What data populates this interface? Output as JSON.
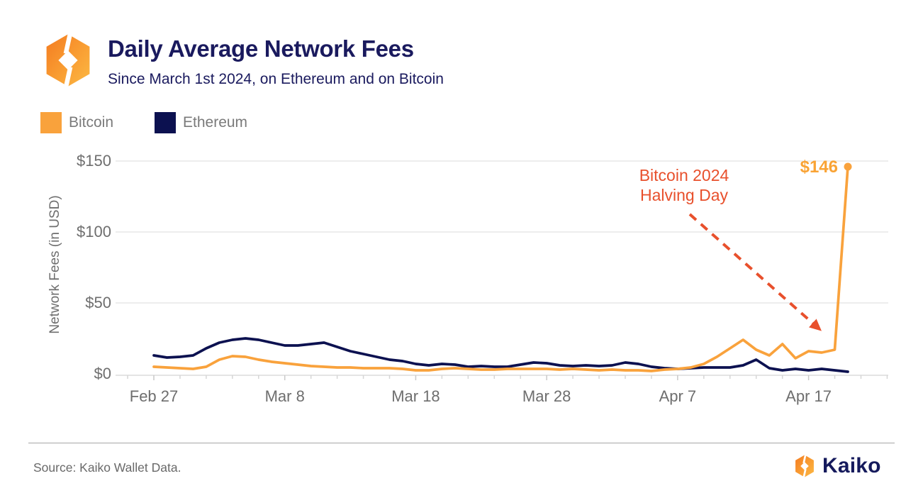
{
  "header": {
    "title": "Daily Average Network Fees",
    "subtitle": "Since March 1st 2024, on Ethereum and on Bitcoin"
  },
  "legend": [
    {
      "label": "Bitcoin",
      "color": "#f9a23c"
    },
    {
      "label": "Ethereum",
      "color": "#0c1150"
    }
  ],
  "chart_data": {
    "type": "line",
    "title": "Daily Average Network Fees",
    "subtitle": "Since March 1st 2024, on Ethereum and on Bitcoin",
    "ylabel": "Network Fees (in USD)",
    "ylim": [
      0,
      150
    ],
    "grid": "horizontal-only",
    "y_ticks": [
      {
        "label": "$0",
        "value": 0
      },
      {
        "label": "$50",
        "value": 50
      },
      {
        "label": "$100",
        "value": 100
      },
      {
        "label": "$150",
        "value": 150
      }
    ],
    "x_ticks": [
      {
        "label": "Feb 27",
        "day": 0
      },
      {
        "label": "Mar 8",
        "day": 10
      },
      {
        "label": "Mar 18",
        "day": 20
      },
      {
        "label": "Mar 28",
        "day": 30
      },
      {
        "label": "Apr 7",
        "day": 40
      },
      {
        "label": "Apr 17",
        "day": 50
      }
    ],
    "x": [
      "Feb 27",
      "Feb 28",
      "Feb 29",
      "Mar 1",
      "Mar 2",
      "Mar 3",
      "Mar 4",
      "Mar 5",
      "Mar 6",
      "Mar 7",
      "Mar 8",
      "Mar 9",
      "Mar 10",
      "Mar 11",
      "Mar 12",
      "Mar 13",
      "Mar 14",
      "Mar 15",
      "Mar 16",
      "Mar 17",
      "Mar 18",
      "Mar 19",
      "Mar 20",
      "Mar 21",
      "Mar 22",
      "Mar 23",
      "Mar 24",
      "Mar 25",
      "Mar 26",
      "Mar 27",
      "Mar 28",
      "Mar 29",
      "Mar 30",
      "Mar 31",
      "Apr 1",
      "Apr 2",
      "Apr 3",
      "Apr 4",
      "Apr 5",
      "Apr 6",
      "Apr 7",
      "Apr 8",
      "Apr 9",
      "Apr 10",
      "Apr 11",
      "Apr 12",
      "Apr 13",
      "Apr 14",
      "Apr 15",
      "Apr 16",
      "Apr 17",
      "Apr 18",
      "Apr 19",
      "Apr 20"
    ],
    "series": [
      {
        "name": "Ethereum",
        "color": "#0c1150",
        "values": [
          13,
          11.5,
          12,
          13,
          18,
          22,
          24,
          25,
          24,
          22,
          20,
          20,
          21,
          22,
          19,
          16,
          14,
          12,
          10,
          9,
          7,
          6,
          7,
          6.5,
          5,
          5.5,
          5,
          5,
          6.5,
          8,
          7.5,
          6,
          5.5,
          6,
          5.5,
          6,
          8,
          7,
          5,
          4,
          3.5,
          4,
          4.5,
          4.5,
          4.5,
          6,
          10,
          4,
          2.5,
          3.5,
          2.5,
          3.5,
          2.5,
          1.5
        ]
      },
      {
        "name": "Bitcoin",
        "color": "#f9a23c",
        "values": [
          5,
          4.5,
          4,
          3.5,
          5,
          10,
          12.5,
          12,
          10,
          8.5,
          7.5,
          6.5,
          5.5,
          5,
          4.5,
          4.5,
          4,
          4,
          4,
          3.5,
          2.5,
          2.5,
          3.5,
          4,
          3.5,
          3,
          3,
          3.5,
          3.5,
          3.5,
          3.5,
          3,
          3.5,
          3,
          2.5,
          3,
          2.5,
          2.5,
          2,
          3,
          3.5,
          4.5,
          7,
          12,
          18,
          24,
          17,
          13,
          21,
          11,
          16,
          15,
          17,
          146
        ]
      }
    ],
    "annotation": {
      "line1": "Bitcoin 2024",
      "line2": "Halving Day",
      "color": "#e8502c",
      "points_to": "Apr 20"
    },
    "end_label": {
      "text": "$146",
      "value": 146,
      "date": "Apr 20",
      "color": "#f9a334"
    },
    "legend_position": "top-left"
  },
  "footer": {
    "source": "Source: Kaiko Wallet Data.",
    "brand": "Kaiko"
  }
}
